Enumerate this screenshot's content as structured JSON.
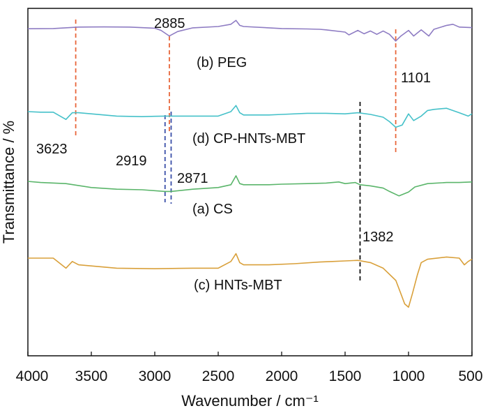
{
  "chart_data": {
    "type": "line",
    "xlabel": "Wavenumber / cm⁻¹",
    "ylabel": "Transmittance / %",
    "xlim": [
      4000,
      500
    ],
    "x_reversed": true,
    "y_tick_labels": false,
    "grid": false,
    "x_ticks": [
      4000,
      3500,
      3000,
      2500,
      2000,
      1500,
      1000,
      500
    ],
    "series": [
      {
        "name": "(b) PEG",
        "color": "#8e7cc3",
        "points": [
          [
            4000,
            0.2
          ],
          [
            3800,
            0.18
          ],
          [
            3600,
            0.05
          ],
          [
            3400,
            0.04
          ],
          [
            3200,
            0.05
          ],
          [
            3000,
            0.15
          ],
          [
            2950,
            0.35
          ],
          [
            2885,
            0.85
          ],
          [
            2820,
            0.45
          ],
          [
            2700,
            0.12
          ],
          [
            2500,
            0.0
          ],
          [
            2400,
            -0.2
          ],
          [
            2360,
            -0.55
          ],
          [
            2330,
            -0.1
          ],
          [
            2300,
            0.0
          ],
          [
            2100,
            0.12
          ],
          [
            2000,
            0.18
          ],
          [
            1800,
            0.22
          ],
          [
            1700,
            0.25
          ],
          [
            1650,
            0.3
          ],
          [
            1500,
            0.5
          ],
          [
            1470,
            0.75
          ],
          [
            1400,
            0.35
          ],
          [
            1350,
            0.65
          ],
          [
            1300,
            0.4
          ],
          [
            1250,
            0.7
          ],
          [
            1200,
            0.4
          ],
          [
            1150,
            0.7
          ],
          [
            1101,
            1.3
          ],
          [
            1060,
            0.85
          ],
          [
            1000,
            0.35
          ],
          [
            960,
            0.85
          ],
          [
            900,
            0.3
          ],
          [
            840,
            0.85
          ],
          [
            800,
            0.25
          ],
          [
            700,
            -0.1
          ],
          [
            650,
            -0.2
          ],
          [
            600,
            0.05
          ],
          [
            500,
            0.1
          ]
        ]
      },
      {
        "name": "(d) CP-HNTs-MBT",
        "color": "#45c1c9",
        "points": [
          [
            4000,
            0.0
          ],
          [
            3900,
            0.05
          ],
          [
            3800,
            0.05
          ],
          [
            3700,
            0.7
          ],
          [
            3650,
            0.1
          ],
          [
            3600,
            0.1
          ],
          [
            3500,
            0.2
          ],
          [
            3300,
            0.4
          ],
          [
            3100,
            0.45
          ],
          [
            3000,
            0.42
          ],
          [
            2919,
            0.4
          ],
          [
            2871,
            0.4
          ],
          [
            2700,
            0.4
          ],
          [
            2500,
            0.4
          ],
          [
            2400,
            0.0
          ],
          [
            2360,
            -0.55
          ],
          [
            2330,
            0.1
          ],
          [
            2300,
            0.3
          ],
          [
            2100,
            0.3
          ],
          [
            2000,
            0.25
          ],
          [
            1800,
            0.15
          ],
          [
            1650,
            0.15
          ],
          [
            1500,
            0.2
          ],
          [
            1400,
            0.1
          ],
          [
            1300,
            0.25
          ],
          [
            1200,
            0.5
          ],
          [
            1150,
            0.9
          ],
          [
            1101,
            1.4
          ],
          [
            1050,
            1.2
          ],
          [
            1000,
            0.2
          ],
          [
            960,
            0.8
          ],
          [
            900,
            0.4
          ],
          [
            850,
            -0.1
          ],
          [
            800,
            -0.2
          ],
          [
            700,
            -0.3
          ],
          [
            600,
            0.1
          ],
          [
            530,
            0.4
          ],
          [
            500,
            0.2
          ]
        ]
      },
      {
        "name": "(a) CS",
        "color": "#5ab56a",
        "points": [
          [
            4000,
            0.0
          ],
          [
            3900,
            0.1
          ],
          [
            3700,
            0.2
          ],
          [
            3500,
            0.55
          ],
          [
            3300,
            0.7
          ],
          [
            3100,
            0.75
          ],
          [
            2919,
            0.9
          ],
          [
            2871,
            0.9
          ],
          [
            2700,
            0.7
          ],
          [
            2500,
            0.55
          ],
          [
            2400,
            0.3
          ],
          [
            2360,
            -0.5
          ],
          [
            2330,
            0.2
          ],
          [
            2300,
            0.3
          ],
          [
            2100,
            0.3
          ],
          [
            2000,
            0.25
          ],
          [
            1800,
            0.2
          ],
          [
            1650,
            0.15
          ],
          [
            1550,
            0.05
          ],
          [
            1500,
            0.2
          ],
          [
            1420,
            0.1
          ],
          [
            1382,
            0.3
          ],
          [
            1300,
            0.4
          ],
          [
            1200,
            0.6
          ],
          [
            1150,
            0.9
          ],
          [
            1075,
            1.3
          ],
          [
            1000,
            0.95
          ],
          [
            950,
            0.5
          ],
          [
            850,
            0.2
          ],
          [
            700,
            0.1
          ],
          [
            600,
            0.1
          ],
          [
            500,
            0.05
          ]
        ]
      },
      {
        "name": "(c) HNTs-MBT",
        "color": "#d9a03a",
        "points": [
          [
            4000,
            0.0
          ],
          [
            3800,
            0.0
          ],
          [
            3700,
            0.9
          ],
          [
            3650,
            0.3
          ],
          [
            3600,
            0.6
          ],
          [
            3500,
            0.7
          ],
          [
            3400,
            0.8
          ],
          [
            3300,
            0.9
          ],
          [
            3000,
            0.95
          ],
          [
            2700,
            0.9
          ],
          [
            2500,
            0.9
          ],
          [
            2400,
            0.3
          ],
          [
            2360,
            -0.4
          ],
          [
            2330,
            0.4
          ],
          [
            2300,
            0.6
          ],
          [
            2100,
            0.6
          ],
          [
            1900,
            0.5
          ],
          [
            1700,
            0.35
          ],
          [
            1600,
            0.3
          ],
          [
            1500,
            0.25
          ],
          [
            1400,
            0.2
          ],
          [
            1300,
            0.4
          ],
          [
            1200,
            0.9
          ],
          [
            1100,
            2.0
          ],
          [
            1060,
            3.2
          ],
          [
            1030,
            4.1
          ],
          [
            1000,
            4.4
          ],
          [
            970,
            3.2
          ],
          [
            930,
            1.5
          ],
          [
            900,
            0.4
          ],
          [
            850,
            0.1
          ],
          [
            700,
            -0.1
          ],
          [
            600,
            0.0
          ],
          [
            560,
            0.6
          ],
          [
            530,
            0.3
          ],
          [
            500,
            0.1
          ]
        ]
      }
    ],
    "series_labels": [
      {
        "text": "(b) PEG",
        "x": 2680,
        "y": 2.2
      },
      {
        "text": "(d) CP-HNTs-MBT",
        "x": 2680,
        "y": 2.2
      },
      {
        "text": "(a) CS",
        "x": 2680,
        "y": 2.3
      },
      {
        "text": "(c) HNTs-MBT",
        "x": 2680,
        "y": 2.3
      }
    ],
    "peak_markers": [
      {
        "label": "3623",
        "x": 3623,
        "color": "#e8663a",
        "dash": true
      },
      {
        "label": "2885",
        "x": 2885,
        "color": "#e8663a",
        "dash": true
      },
      {
        "label": "1101",
        "x": 1101,
        "color": "#e8663a",
        "dash": true
      },
      {
        "label": "2919",
        "x": 2919,
        "color": "#3a4fa8",
        "dash": true
      },
      {
        "label": "2871",
        "x": 2871,
        "color": "#3a4fa8",
        "dash": true
      },
      {
        "label": "1382",
        "x": 1382,
        "color": "#111111",
        "dash": true
      }
    ]
  }
}
